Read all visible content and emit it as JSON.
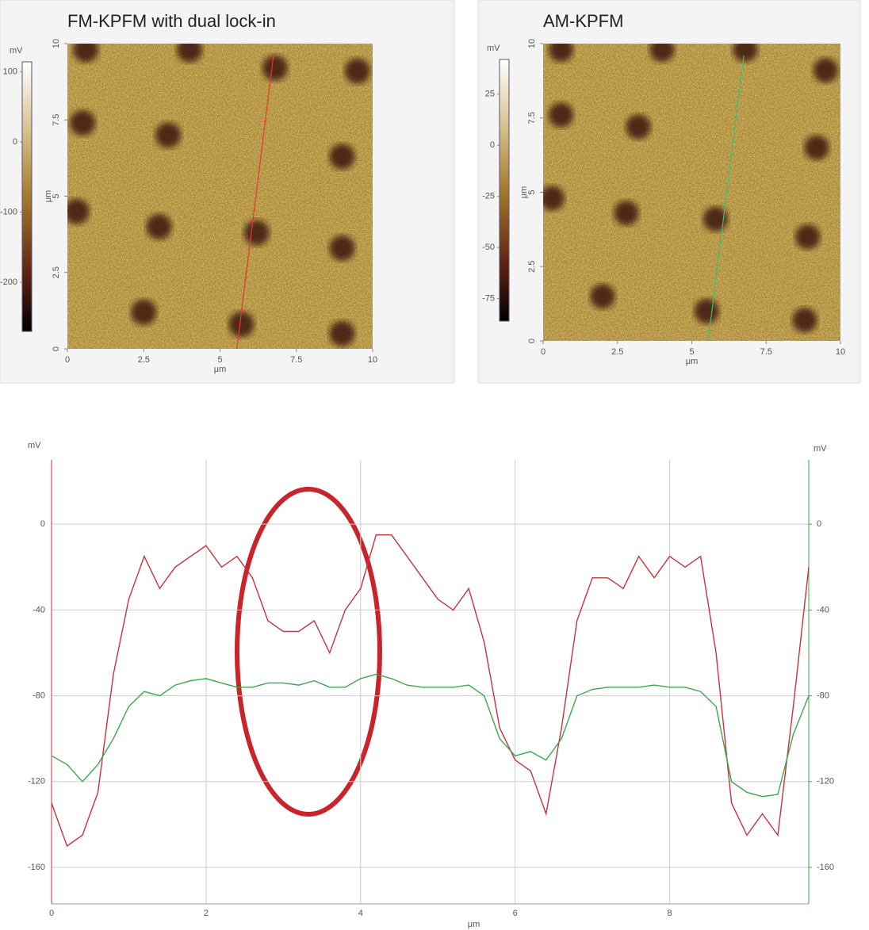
{
  "chart_data": [
    {
      "type": "image",
      "title": "FM-KPFM with dual lock-in",
      "xlabel": "μm",
      "ylabel": "μm",
      "xlim": [
        0,
        10
      ],
      "ylim": [
        0,
        10
      ],
      "xticks": [
        0,
        2.5,
        5,
        7.5,
        10
      ],
      "yticks": [
        0,
        2.5,
        5,
        7.5,
        10
      ],
      "colorbar": {
        "label": "mV",
        "lim": [
          -270,
          114
        ],
        "ticks": [
          100,
          0,
          -100,
          -200
        ]
      },
      "profile_color": "#e8343c"
    },
    {
      "type": "image",
      "title": "AM-KPFM",
      "xlabel": "μm",
      "ylabel": "μm",
      "xlim": [
        0,
        10
      ],
      "ylim": [
        0,
        10
      ],
      "xticks": [
        0,
        2.5,
        5,
        7.5,
        10
      ],
      "yticks": [
        0,
        2.5,
        5,
        7.5,
        10
      ],
      "colorbar": {
        "label": "mV",
        "lim": [
          -86,
          42
        ],
        "ticks": [
          25,
          0,
          -25,
          -50,
          -75
        ]
      },
      "profile_color": "#3cc070"
    },
    {
      "type": "line",
      "xlabel": "μm",
      "ylabel": "mV",
      "y2label": "mV",
      "grid": true,
      "xlim": [
        0,
        9.8
      ],
      "xticks": [
        0,
        2,
        4,
        6,
        8
      ],
      "ylim": [
        -177,
        30
      ],
      "yticks": [
        0,
        -40,
        -80,
        -120,
        -160
      ],
      "y2lim": [
        -177,
        30
      ],
      "y2ticks": [
        0,
        -40,
        -80,
        -120,
        -160
      ],
      "x": [
        0,
        0.2,
        0.4,
        0.6,
        0.8,
        1.0,
        1.2,
        1.4,
        1.6,
        1.8,
        2.0,
        2.2,
        2.4,
        2.6,
        2.8,
        3.0,
        3.2,
        3.4,
        3.6,
        3.8,
        4.0,
        4.2,
        4.4,
        4.6,
        4.8,
        5.0,
        5.2,
        5.4,
        5.6,
        5.8,
        6.0,
        6.2,
        6.4,
        6.6,
        6.8,
        7.0,
        7.2,
        7.4,
        7.6,
        7.8,
        8.0,
        8.2,
        8.4,
        8.6,
        8.8,
        9.0,
        9.2,
        9.4,
        9.6,
        9.8
      ],
      "series": [
        {
          "color": "#c8323c",
          "values": [
            -130,
            -150,
            -145,
            -125,
            -70,
            -35,
            -15,
            -30,
            -20,
            -15,
            -10,
            -20,
            -15,
            -25,
            -45,
            -50,
            -50,
            -45,
            -60,
            -40,
            -30,
            -5,
            -5,
            -15,
            -25,
            -35,
            -40,
            -30,
            -55,
            -95,
            -110,
            -115,
            -135,
            -95,
            -45,
            -25,
            -25,
            -30,
            -15,
            -25,
            -15,
            -20,
            -15,
            -60,
            -130,
            -145,
            -135,
            -145,
            -85,
            -20
          ]
        },
        {
          "color": "#3aa84a",
          "axis": "y2",
          "values": [
            -108,
            -112,
            -120,
            -112,
            -100,
            -85,
            -78,
            -80,
            -75,
            -73,
            -72,
            -74,
            -76,
            -76,
            -74,
            -74,
            -75,
            -73,
            -76,
            -76,
            -72,
            -70,
            -72,
            -75,
            -76,
            -76,
            -76,
            -75,
            -80,
            -100,
            -108,
            -106,
            -110,
            -100,
            -80,
            -77,
            -76,
            -76,
            -76,
            -75,
            -76,
            -76,
            -78,
            -85,
            -120,
            -125,
            -127,
            -126,
            -98,
            -80
          ]
        }
      ]
    }
  ]
}
